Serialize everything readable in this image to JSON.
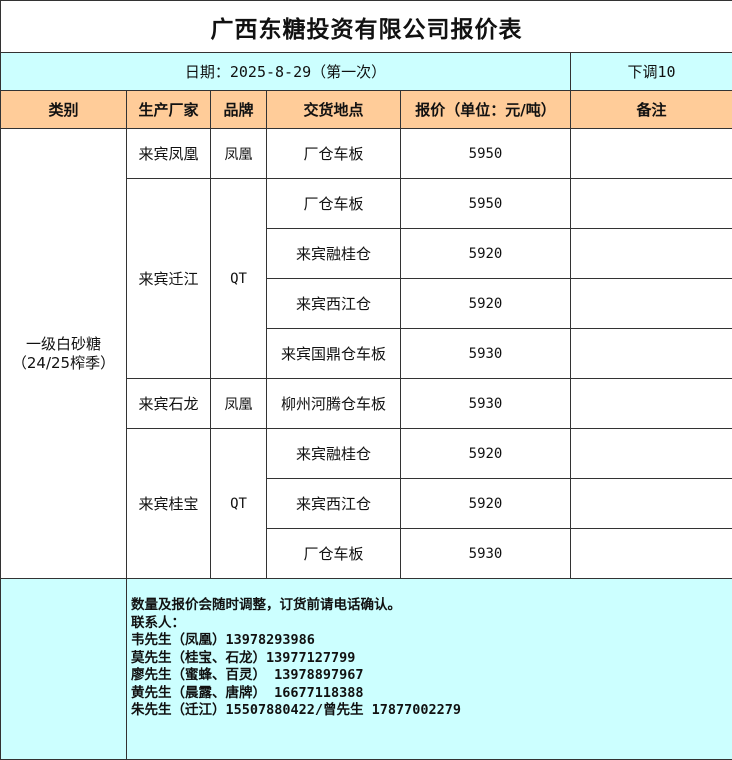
{
  "title": "广西东糖投资有限公司报价表",
  "date_line": "日期：2025-8-29（第一次）",
  "adjustment": "下调10",
  "headers": [
    "类别",
    "生产厂家",
    "品牌",
    "交货地点",
    "报价（单位：元/吨）",
    "备注"
  ],
  "category": {
    "line1": "一级白砂糖",
    "line2": "（24/25榨季）"
  },
  "groups": [
    {
      "manufacturer": "来宾凤凰",
      "brand": "凤凰",
      "rows": [
        {
          "location": "厂仓车板",
          "price": "5950",
          "note": ""
        }
      ]
    },
    {
      "manufacturer": "来宾迁江",
      "brand": "QT",
      "rows": [
        {
          "location": "厂仓车板",
          "price": "5950",
          "note": ""
        },
        {
          "location": "来宾融桂仓",
          "price": "5920",
          "note": ""
        },
        {
          "location": "来宾西江仓",
          "price": "5920",
          "note": ""
        },
        {
          "location": "来宾国鼎仓车板",
          "price": "5930",
          "note": ""
        }
      ]
    },
    {
      "manufacturer": "来宾石龙",
      "brand": "凤凰",
      "rows": [
        {
          "location": "柳州河腾仓车板",
          "price": "5930",
          "note": ""
        }
      ]
    },
    {
      "manufacturer": "来宾桂宝",
      "brand": "QT",
      "rows": [
        {
          "location": "来宾融桂仓",
          "price": "5920",
          "note": ""
        },
        {
          "location": "来宾西江仓",
          "price": "5920",
          "note": ""
        },
        {
          "location": "厂仓车板",
          "price": "5930",
          "note": ""
        }
      ]
    }
  ],
  "footer": {
    "notice": "数量及报价会随时调整，订货前请电话确认。",
    "contacts_label": "联系人：",
    "contacts": [
      "韦先生（凤凰）13978293986",
      "莫先生（桂宝、石龙）13977127799",
      "廖先生（蜜蜂、百灵） 13978897967",
      "黄先生（晨露、唐牌） 16677118388",
      "朱先生（迁江）15507880422/曾先生 17877002279"
    ]
  },
  "colors": {
    "date_row_bg": "#ccffff",
    "header_bg": "#ffcc99",
    "footer_bg": "#ccffff"
  }
}
